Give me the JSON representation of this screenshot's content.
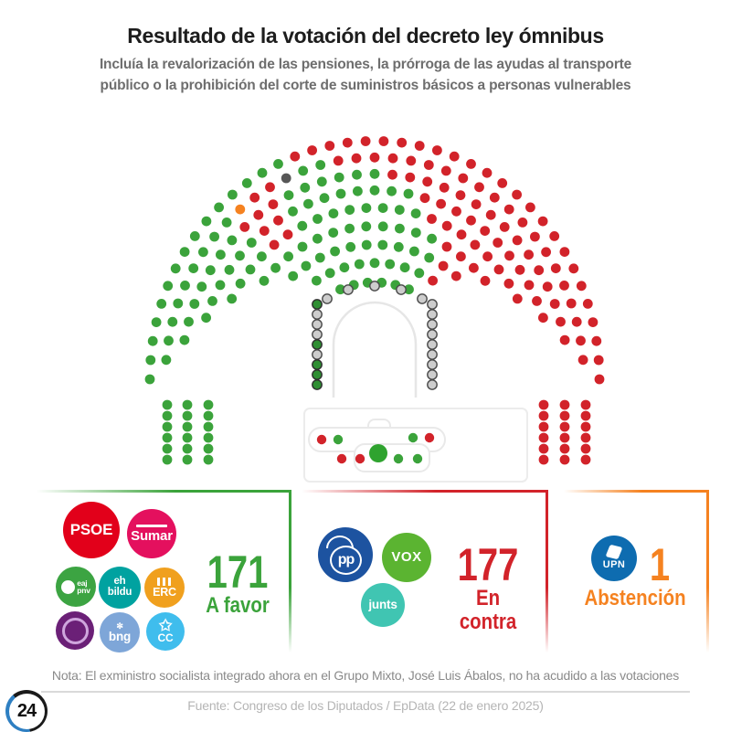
{
  "header": {
    "title": "Resultado de la votación del decreto ley ómnibus",
    "subtitle": "Incluía la revalorización de las pensiones, la prórroga de las ayudas al transporte\npúblico o la prohibición del corte de suministros básicos a personas vulnerables"
  },
  "chart_data": {
    "type": "parliament",
    "title": "Resultado de la votación del decreto ley ómnibus",
    "total_seats": 350,
    "results": [
      {
        "label": "A favor",
        "votes": 171,
        "color": "#3BA33B",
        "parties": [
          "PSOE",
          "Sumar",
          "EAJ-PNV",
          "EH Bildu",
          "ERC",
          "Podemos",
          "BNG",
          "Coalición Canaria"
        ]
      },
      {
        "label": "En contra",
        "votes": 177,
        "color": "#D2232A",
        "parties": [
          "PP",
          "VOX",
          "Junts"
        ]
      },
      {
        "label": "Abstención",
        "votes": 1,
        "color": "#F58220",
        "parties": [
          "UPN"
        ]
      },
      {
        "label": "No ha acudido a las votaciones",
        "votes": 1,
        "color": "#575757",
        "parties": [
          "José Luis Ábalos (Grupo Mixto)"
        ]
      }
    ],
    "colors": {
      "favor": "#3BA33B",
      "contra": "#D2232A",
      "abstencion": "#F58220",
      "ausente": "#575757",
      "bench": "#CDCDCD",
      "benchStroke": "#4A4A4A",
      "benchFavor": "#2F8F33",
      "benchFavorStroke": "#2F2F2F",
      "president": "#2FA32F"
    },
    "layout_hints": {
      "shape": "hemicycle",
      "legend_position": "bottom",
      "bench": "mesa central en gris"
    }
  },
  "legend": {
    "groups": [
      {
        "count": "171",
        "label": "A favor",
        "color": "#3BA33B",
        "parties": [
          {
            "label": "PSOE",
            "bg": "#E2001A"
          },
          {
            "label": "Sumar",
            "bg": "#E4105E"
          },
          {
            "label": "eaj\npnv",
            "bg": "#3CA442"
          },
          {
            "label": "eh\nbildu",
            "bg": "#00A2A0"
          },
          {
            "label": "ERC",
            "bg": "#F0A01E"
          },
          {
            "label": "",
            "bg": "#6B2077"
          },
          {
            "label": "bng",
            "bg": "#7EA6D8",
            "icon": "✼"
          },
          {
            "label": "CC",
            "bg": "#3FBDED",
            "icon": "✩"
          }
        ]
      },
      {
        "count": "177",
        "label": "En contra",
        "color": "#D2232A",
        "parties": [
          {
            "label": "pp",
            "bg": "#1D53A0"
          },
          {
            "label": "VOX",
            "bg": "#5BB431"
          },
          {
            "label": "junts",
            "bg": "#40C5B2"
          }
        ]
      },
      {
        "count": "1",
        "label": "Abstención",
        "color": "#F58220",
        "parties": [
          {
            "label": "UPN",
            "bg": "#0E6CB0"
          }
        ]
      }
    ]
  },
  "footer": {
    "note": "Nota: El exministro socialista integrado ahora en el Grupo Mixto, José Luis Ábalos, no ha acudido a las votaciones",
    "source": "Fuente: Congreso de los Diputados / EpData (22 de enero 2025)",
    "badge": "24"
  }
}
